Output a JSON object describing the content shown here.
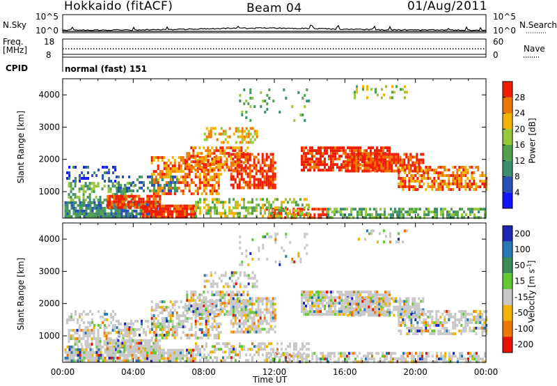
{
  "header": {
    "radar": "Hokkaido (fitACF)",
    "beam": "Beam 04",
    "date": "01/Aug/2011"
  },
  "summary_panel": {
    "nsky_label": "N.Sky",
    "nsky_ticks": [
      "10^5",
      "10^0"
    ],
    "nsearch_label": "N.Search",
    "nsearch_ticks": [
      "10^5",
      "10^0"
    ],
    "freq_label_1": "Freq.",
    "freq_label_2": "[MHz]",
    "freq_ticks": [
      "18",
      "8"
    ],
    "nave_label": "Nave",
    "nave_ticks": [
      "60",
      "0"
    ],
    "cpid_label": "CPID",
    "cpid_text": "normal (fast) 151"
  },
  "chart_data": [
    {
      "type": "heatmap",
      "name": "power-panel",
      "ylabel": "Slant Range [km]",
      "yticks": [
        "1000",
        "2000",
        "3000",
        "4000"
      ],
      "ylim": [
        180,
        4500
      ],
      "xlim": [
        0,
        24
      ],
      "colorbar": {
        "label": "Power [dB]",
        "ticks": [
          "4",
          "8",
          "12",
          "16",
          "20",
          "24",
          "28"
        ],
        "range": [
          0,
          32
        ],
        "colors": [
          "#1414ff",
          "#2850b4",
          "#3c8c6e",
          "#50a050",
          "#96c83c",
          "#f0b400",
          "#f07800",
          "#f01e00"
        ]
      }
    },
    {
      "type": "heatmap",
      "name": "velocity-panel",
      "ylabel": "Slant Range [km]",
      "yticks": [
        "1000",
        "2000",
        "3000",
        "4000"
      ],
      "ylim": [
        180,
        4500
      ],
      "xlim": [
        0,
        24
      ],
      "colorbar": {
        "label": "Velocity [m s",
        "label_sup": "-1",
        "label_end": "]",
        "ticks": [
          "200",
          "100",
          "50",
          "15",
          "-15",
          "-50",
          "-100",
          "-200"
        ],
        "colors": [
          "#1e28b4",
          "#2878b4",
          "#3c8c5a",
          "#64c832",
          "#c8c8c8",
          "#f0b400",
          "#f07800",
          "#e61400"
        ]
      }
    }
  ],
  "xaxis": {
    "ticks": [
      "00:00",
      "04:00",
      "08:00",
      "12:00",
      "16:00",
      "20:00",
      "00:00"
    ],
    "label": "Time UT"
  },
  "colors": {
    "axis": "#000000",
    "gray_scatter": "#c8c8c8"
  }
}
